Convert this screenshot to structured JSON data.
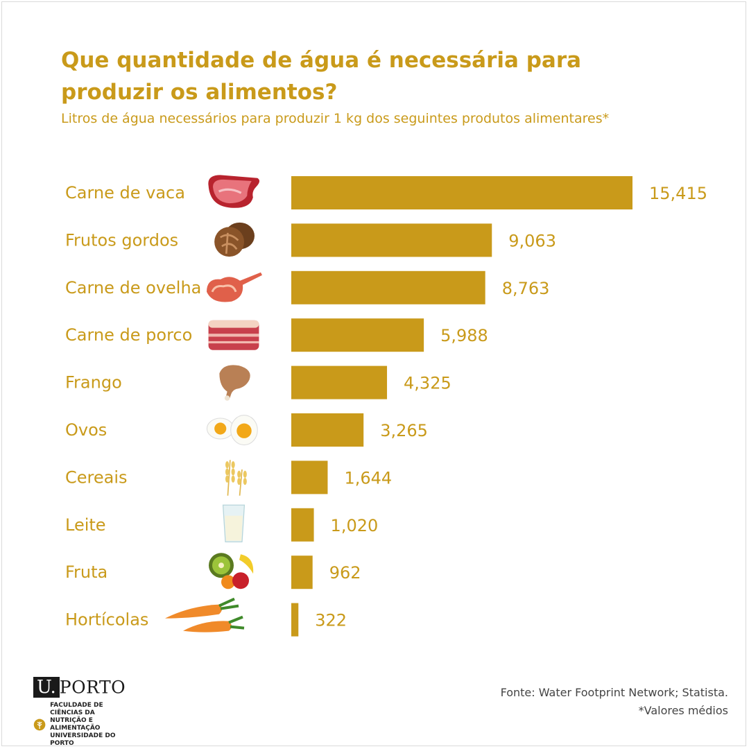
{
  "title": "Que quantidade de água é necessária para produzir os alimentos?",
  "subtitle": "Litros de água necessários para produzir 1 kg dos seguintes produtos alimentares*",
  "colors": {
    "accent": "#c99a1a",
    "text": "#444444"
  },
  "chart_data": {
    "type": "bar",
    "orientation": "horizontal",
    "categories": [
      "Carne de vaca",
      "Frutos gordos",
      "Carne de ovelha",
      "Carne de porco",
      "Frango",
      "Ovos",
      "Cereais",
      "Leite",
      "Fruta",
      "Hortícolas"
    ],
    "values": [
      15415,
      9063,
      8763,
      5988,
      4325,
      3265,
      1644,
      1020,
      962,
      322
    ],
    "value_labels": [
      "15,415",
      "9,063",
      "8,763",
      "5,988",
      "4,325",
      "3,265",
      "1,644",
      "1,020",
      "962",
      "322"
    ],
    "icons": [
      "steak-icon",
      "walnut-icon",
      "lamb-icon",
      "pork-icon",
      "chicken-leg-icon",
      "egg-icon",
      "wheat-icon",
      "milk-glass-icon",
      "fruit-icon",
      "carrot-icon"
    ],
    "xlim": [
      0,
      15415
    ],
    "grid": false,
    "legend": "none"
  },
  "logo": {
    "u": "U.",
    "porto": "PORTO",
    "line1": "FACULDADE DE CIÊNCIAS DA",
    "line2": "NUTRIÇÃO E ALIMENTAÇÃO",
    "line3": "UNIVERSIDADE DO PORTO"
  },
  "source": {
    "line1": "Fonte: Water Footprint Network; Statista.",
    "line2": "*Valores médios"
  }
}
